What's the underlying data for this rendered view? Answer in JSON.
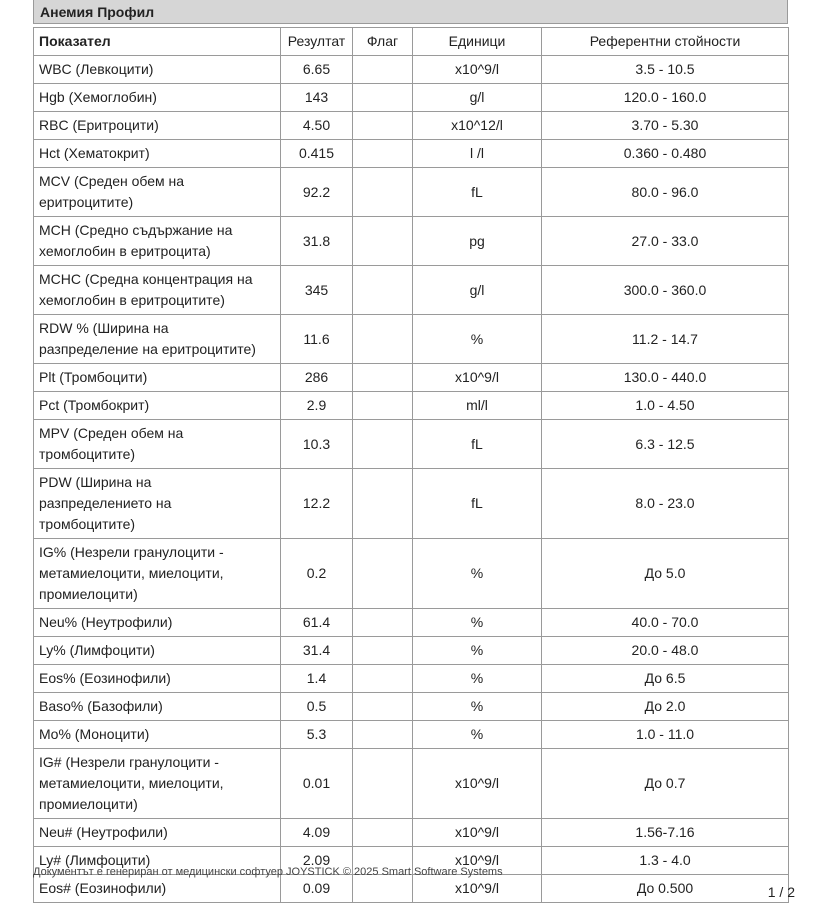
{
  "title": "Анемия Профил",
  "columns": [
    "Показател",
    "Резултат",
    "Флаг",
    "Единици",
    "Референтни стойности"
  ],
  "rows": [
    {
      "name": "WBC (Левкоцити)",
      "result": "6.65",
      "flag": "",
      "unit": "x10^9/l",
      "ref": "3.5 - 10.5"
    },
    {
      "name": "Hgb (Хемоглобин)",
      "result": "143",
      "flag": "",
      "unit": "g/l",
      "ref": "120.0 - 160.0"
    },
    {
      "name": "RBC (Еритроцити)",
      "result": "4.50",
      "flag": "",
      "unit": "x10^12/l",
      "ref": "3.70 - 5.30"
    },
    {
      "name": "Hct (Хематокрит)",
      "result": "0.415",
      "flag": "",
      "unit": "l /l",
      "ref": "0.360 - 0.480"
    },
    {
      "name": "MCV (Среден обем на\nеритроцитите)",
      "result": "92.2",
      "flag": "",
      "unit": "fL",
      "ref": "80.0 - 96.0"
    },
    {
      "name": "MCH (Средно съдържание на\nхемоглобин в еритроцита)",
      "result": "31.8",
      "flag": "",
      "unit": "pg",
      "ref": "27.0 - 33.0"
    },
    {
      "name": "MCHC (Средна концентрация на\nхемоглобин в еритроцитите)",
      "result": "345",
      "flag": "",
      "unit": "g/l",
      "ref": "300.0 - 360.0"
    },
    {
      "name": "RDW % (Ширина на\nразпределение на еритроцитите)",
      "result": "11.6",
      "flag": "",
      "unit": "%",
      "ref": "11.2 - 14.7"
    },
    {
      "name": "Plt (Тромбоцити)",
      "result": "286",
      "flag": "",
      "unit": "x10^9/l",
      "ref": "130.0 - 440.0"
    },
    {
      "name": "Pct (Тромбокрит)",
      "result": "2.9",
      "flag": "",
      "unit": "ml/l",
      "ref": "1.0 - 4.50"
    },
    {
      "name": "MPV (Среден обем на\nтромбоцитите)",
      "result": "10.3",
      "flag": "",
      "unit": "fL",
      "ref": "6.3 - 12.5"
    },
    {
      "name": "PDW (Ширина на\nразпределението на\nтромбоцитите)",
      "result": "12.2",
      "flag": "",
      "unit": "fL",
      "ref": "8.0 - 23.0"
    },
    {
      "name": "IG% (Незрели гранулоцити -\nметамиелоцити, миелоцити,\nпромиелоцити)",
      "result": "0.2",
      "flag": "",
      "unit": "%",
      "ref": "До 5.0"
    },
    {
      "name": "Neu% (Неутрофили)",
      "result": "61.4",
      "flag": "",
      "unit": "%",
      "ref": "40.0 - 70.0"
    },
    {
      "name": "Ly% (Лимфоцити)",
      "result": "31.4",
      "flag": "",
      "unit": "%",
      "ref": "20.0 - 48.0"
    },
    {
      "name": "Eos% (Еозинофили)",
      "result": "1.4",
      "flag": "",
      "unit": "%",
      "ref": "До 6.5"
    },
    {
      "name": "Baso% (Базофили)",
      "result": "0.5",
      "flag": "",
      "unit": "%",
      "ref": "До 2.0"
    },
    {
      "name": "Mo% (Моноцити)",
      "result": "5.3",
      "flag": "",
      "unit": "%",
      "ref": "1.0 - 11.0"
    },
    {
      "name": "IG# (Незрели гранулоцити -\nметамиелоцити, миелоцити,\nпромиелоцити)",
      "result": "0.01",
      "flag": "",
      "unit": "x10^9/l",
      "ref": "До 0.7"
    },
    {
      "name": "Neu# (Неутрофили)",
      "result": "4.09",
      "flag": "",
      "unit": "x10^9/l",
      "ref": "1.56-7.16"
    },
    {
      "name": "Ly# (Лимфоцити)",
      "result": "2.09",
      "flag": "",
      "unit": "x10^9/l",
      "ref": "1.3 - 4.0"
    },
    {
      "name": "Eos# (Еозинофили)",
      "result": "0.09",
      "flag": "",
      "unit": "x10^9/l",
      "ref": "До 0.500"
    }
  ],
  "footer": "Документът е генериран от медицински софтуер JOYSTICK © 2025 Smart Software Systems",
  "page": "1 / 2"
}
